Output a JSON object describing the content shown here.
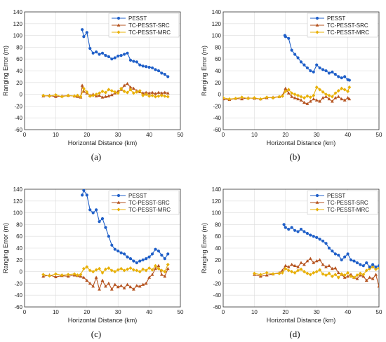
{
  "chart_data": [
    {
      "type": "line",
      "panel_label": "(a)",
      "xlabel": "Horizontal Distance (km)",
      "ylabel": "Ranging Error (m)",
      "xlim": [
        0,
        50
      ],
      "ylim": [
        -60,
        140
      ],
      "xticks": [
        "0",
        "10",
        "20",
        "30",
        "40",
        "50"
      ],
      "yticks": [
        "-60",
        "-40",
        "-20",
        "0",
        "20",
        "40",
        "60",
        "80",
        "100",
        "120",
        "140"
      ],
      "grid": true,
      "legend_position": "top-right",
      "series": [
        {
          "name": "PESST",
          "color": "#1f5fc8",
          "marker": "circle",
          "x": [
            18.5,
            19,
            20,
            21,
            22,
            23,
            24,
            25,
            26,
            27,
            28,
            29,
            30,
            31,
            32,
            33,
            34,
            35,
            36,
            37,
            38,
            39,
            40,
            41,
            42,
            43,
            44,
            45,
            46
          ],
          "y": [
            110,
            98,
            105,
            78,
            70,
            72,
            68,
            70,
            66,
            64,
            60,
            62,
            65,
            66,
            68,
            70,
            58,
            56,
            55,
            50,
            48,
            47,
            46,
            45,
            42,
            40,
            36,
            34,
            30
          ]
        },
        {
          "name": "TC-PESST-SRC",
          "color": "#b5531f",
          "marker": "triangle",
          "x": [
            6,
            8,
            10,
            12,
            14,
            16,
            17,
            18,
            18.5,
            19,
            20,
            21,
            22,
            23,
            24,
            25,
            26,
            27,
            28,
            29,
            30,
            31,
            32,
            33,
            34,
            35,
            36,
            37,
            38,
            39,
            40,
            41,
            42,
            43,
            44,
            45,
            46
          ],
          "y": [
            -3,
            -2,
            -4,
            -3,
            -2,
            -3,
            -4,
            -5,
            15,
            5,
            2,
            -2,
            0,
            -3,
            -2,
            -5,
            -4,
            -3,
            -1,
            2,
            5,
            8,
            15,
            18,
            12,
            10,
            6,
            4,
            2,
            3,
            2,
            3,
            1,
            3,
            2,
            3,
            2
          ]
        },
        {
          "name": "TC-PESST-MRC",
          "color": "#e8b007",
          "marker": "diamond",
          "x": [
            6,
            8,
            10,
            12,
            14,
            16,
            17,
            18,
            19,
            20,
            21,
            22,
            23,
            24,
            25,
            26,
            27,
            28,
            29,
            30,
            31,
            32,
            33,
            34,
            35,
            36,
            37,
            38,
            39,
            40,
            41,
            42,
            43,
            44,
            45,
            46
          ],
          "y": [
            -2,
            -3,
            -1,
            -4,
            -2,
            -3,
            -2,
            -4,
            10,
            4,
            -3,
            -2,
            0,
            2,
            5,
            3,
            8,
            6,
            4,
            2,
            10,
            5,
            3,
            8,
            2,
            4,
            6,
            -2,
            0,
            -3,
            -2,
            -4,
            -3,
            -2,
            -3,
            -4
          ]
        }
      ]
    },
    {
      "type": "line",
      "panel_label": "(b)",
      "xlabel": "Horizontal Distance (km)",
      "ylabel": "Ranging Error (m)",
      "xlim": [
        0,
        50
      ],
      "ylim": [
        -60,
        140
      ],
      "xticks": [
        "0",
        "10",
        "20",
        "30",
        "40",
        "50"
      ],
      "yticks": [
        "-60",
        "-40",
        "-20",
        "0",
        "20",
        "40",
        "60",
        "80",
        "100",
        "120",
        "140"
      ],
      "grid": true,
      "legend_position": "top-right",
      "series": [
        {
          "name": "PESST",
          "color": "#1f5fc8",
          "marker": "circle",
          "x": [
            19.8,
            20,
            21,
            22,
            23,
            24,
            25,
            26,
            27,
            28,
            29,
            30,
            31,
            32,
            33,
            34,
            35,
            36,
            37,
            38,
            39,
            40,
            40.5
          ],
          "y": [
            100,
            98,
            95,
            75,
            68,
            62,
            55,
            50,
            45,
            40,
            38,
            50,
            45,
            42,
            40,
            36,
            38,
            34,
            30,
            28,
            30,
            25,
            24
          ]
        },
        {
          "name": "TC-PESST-SRC",
          "color": "#b5531f",
          "marker": "triangle",
          "x": [
            0,
            2,
            4,
            6,
            8,
            10,
            12,
            14,
            16,
            18,
            19,
            20,
            21,
            22,
            23,
            24,
            25,
            26,
            27,
            28,
            29,
            30,
            31,
            32,
            33,
            34,
            35,
            36,
            37,
            38,
            39,
            40,
            40.5
          ],
          "y": [
            -8,
            -9,
            -7,
            -8,
            -6,
            -7,
            -8,
            -6,
            -5,
            -4,
            -2,
            10,
            2,
            -4,
            -6,
            -8,
            -10,
            -14,
            -16,
            -12,
            -8,
            -10,
            -12,
            -6,
            -4,
            -8,
            -12,
            -6,
            -4,
            -8,
            -10,
            -6,
            -8
          ]
        },
        {
          "name": "TC-PESST-MRC",
          "color": "#e8b007",
          "marker": "diamond",
          "x": [
            0,
            2,
            4,
            6,
            8,
            10,
            12,
            14,
            16,
            18,
            19,
            20,
            21,
            22,
            23,
            24,
            25,
            26,
            27,
            28,
            29,
            30,
            31,
            32,
            33,
            34,
            35,
            36,
            37,
            38,
            39,
            40,
            40.5
          ],
          "y": [
            -6,
            -8,
            -7,
            -5,
            -7,
            -6,
            -8,
            -5,
            -6,
            -4,
            -3,
            5,
            8,
            2,
            0,
            -2,
            -4,
            -6,
            -3,
            -5,
            -2,
            12,
            8,
            4,
            0,
            -2,
            -4,
            2,
            6,
            10,
            8,
            5,
            12
          ]
        }
      ]
    },
    {
      "type": "line",
      "panel_label": "(c)",
      "xlabel": "Horizontal Distance (km)",
      "ylabel": "Ranging Error (m)",
      "xlim": [
        0,
        50
      ],
      "ylim": [
        -60,
        140
      ],
      "xticks": [
        "0",
        "10",
        "20",
        "30",
        "40",
        "50"
      ],
      "yticks": [
        "-60",
        "-40",
        "-20",
        "0",
        "20",
        "40",
        "60",
        "80",
        "100",
        "120",
        "140"
      ],
      "grid": true,
      "legend_position": "top-right",
      "series": [
        {
          "name": "PESST",
          "color": "#1f5fc8",
          "marker": "circle",
          "x": [
            18.5,
            19,
            20,
            21,
            22,
            23,
            24,
            25,
            26,
            27,
            28,
            29,
            30,
            31,
            32,
            33,
            34,
            35,
            36,
            37,
            38,
            39,
            40,
            41,
            42,
            43,
            44,
            45,
            46
          ],
          "y": [
            130,
            138,
            130,
            105,
            100,
            105,
            85,
            90,
            75,
            60,
            45,
            38,
            35,
            32,
            30,
            25,
            22,
            18,
            15,
            18,
            20,
            22,
            25,
            30,
            38,
            35,
            28,
            22,
            30
          ]
        },
        {
          "name": "TC-PESST-SRC",
          "color": "#b5531f",
          "marker": "triangle",
          "x": [
            6,
            8,
            10,
            12,
            14,
            16,
            17,
            18,
            19,
            20,
            21,
            22,
            23,
            24,
            25,
            26,
            27,
            28,
            29,
            30,
            31,
            32,
            33,
            34,
            35,
            36,
            37,
            38,
            39,
            40,
            41,
            42,
            43,
            44,
            45,
            46
          ],
          "y": [
            -8,
            -6,
            -9,
            -7,
            -8,
            -6,
            -7,
            -8,
            -10,
            -15,
            -20,
            -25,
            -10,
            -30,
            -15,
            -25,
            -20,
            -30,
            -22,
            -26,
            -24,
            -28,
            -22,
            -26,
            -30,
            -24,
            -25,
            -22,
            -20,
            -10,
            -5,
            5,
            10,
            -5,
            -8,
            5
          ]
        },
        {
          "name": "TC-PESST-MRC",
          "color": "#e8b007",
          "marker": "diamond",
          "x": [
            6,
            8,
            10,
            12,
            14,
            16,
            17,
            18,
            19,
            20,
            21,
            22,
            23,
            24,
            25,
            26,
            27,
            28,
            29,
            30,
            31,
            32,
            33,
            34,
            35,
            36,
            37,
            38,
            39,
            40,
            41,
            42,
            43,
            44,
            45,
            46
          ],
          "y": [
            -5,
            -7,
            -4,
            -6,
            -5,
            -4,
            -6,
            -5,
            5,
            8,
            2,
            0,
            3,
            5,
            -2,
            4,
            6,
            2,
            0,
            3,
            5,
            2,
            4,
            6,
            3,
            2,
            0,
            4,
            2,
            6,
            3,
            10,
            5,
            2,
            0,
            12
          ]
        }
      ]
    },
    {
      "type": "line",
      "panel_label": "(d)",
      "xlabel": "Horizontal Distance (km)",
      "ylabel": "Ranging Error (m)",
      "xlim": [
        0,
        50
      ],
      "ylim": [
        -60,
        140
      ],
      "xticks": [
        "0",
        "10",
        "20",
        "30",
        "40",
        "50"
      ],
      "yticks": [
        "-60",
        "-40",
        "-20",
        "0",
        "20",
        "40",
        "60",
        "80",
        "100",
        "120",
        "140"
      ],
      "grid": true,
      "legend_position": "top-right",
      "series": [
        {
          "name": "PESST",
          "color": "#1f5fc8",
          "marker": "circle",
          "x": [
            19.5,
            20,
            21,
            22,
            23,
            24,
            25,
            26,
            27,
            28,
            29,
            30,
            31,
            32,
            33,
            34,
            35,
            36,
            37,
            38,
            39,
            40,
            41,
            42,
            43,
            44,
            45,
            46,
            47,
            48,
            49,
            50
          ],
          "y": [
            80,
            75,
            72,
            75,
            70,
            68,
            72,
            68,
            65,
            62,
            60,
            58,
            55,
            52,
            48,
            40,
            35,
            30,
            28,
            20,
            25,
            30,
            20,
            18,
            15,
            12,
            10,
            15,
            8,
            12,
            8,
            10
          ]
        },
        {
          "name": "TC-PESST-SRC",
          "color": "#b5531f",
          "marker": "triangle",
          "x": [
            10,
            12,
            14,
            16,
            18,
            19,
            20,
            21,
            22,
            23,
            24,
            25,
            26,
            27,
            28,
            29,
            30,
            31,
            32,
            33,
            34,
            35,
            36,
            37,
            38,
            39,
            40,
            41,
            42,
            43,
            44,
            45,
            46,
            47,
            48,
            49,
            50
          ],
          "y": [
            -5,
            -8,
            -6,
            -4,
            -2,
            2,
            10,
            8,
            12,
            10,
            8,
            15,
            12,
            18,
            22,
            15,
            18,
            20,
            12,
            8,
            10,
            5,
            6,
            -2,
            -5,
            -10,
            -8,
            -5,
            -10,
            -12,
            -6,
            -8,
            -15,
            -10,
            -12,
            -5,
            -25
          ]
        },
        {
          "name": "TC-PESST-MRC",
          "color": "#e8b007",
          "marker": "diamond",
          "x": [
            10,
            12,
            14,
            16,
            18,
            19,
            20,
            21,
            22,
            23,
            24,
            25,
            26,
            27,
            28,
            29,
            30,
            31,
            32,
            33,
            34,
            35,
            36,
            37,
            38,
            39,
            40,
            41,
            42,
            43,
            44,
            45,
            46,
            47,
            48,
            49,
            50
          ],
          "y": [
            -3,
            -5,
            -2,
            -4,
            -3,
            -2,
            5,
            2,
            0,
            -2,
            2,
            4,
            0,
            -3,
            -5,
            -2,
            0,
            3,
            -4,
            -6,
            -3,
            -8,
            -5,
            -10,
            -4,
            -6,
            -2,
            -8,
            -10,
            -6,
            -3,
            -5,
            2,
            5,
            8,
            4,
            6
          ]
        }
      ]
    }
  ]
}
